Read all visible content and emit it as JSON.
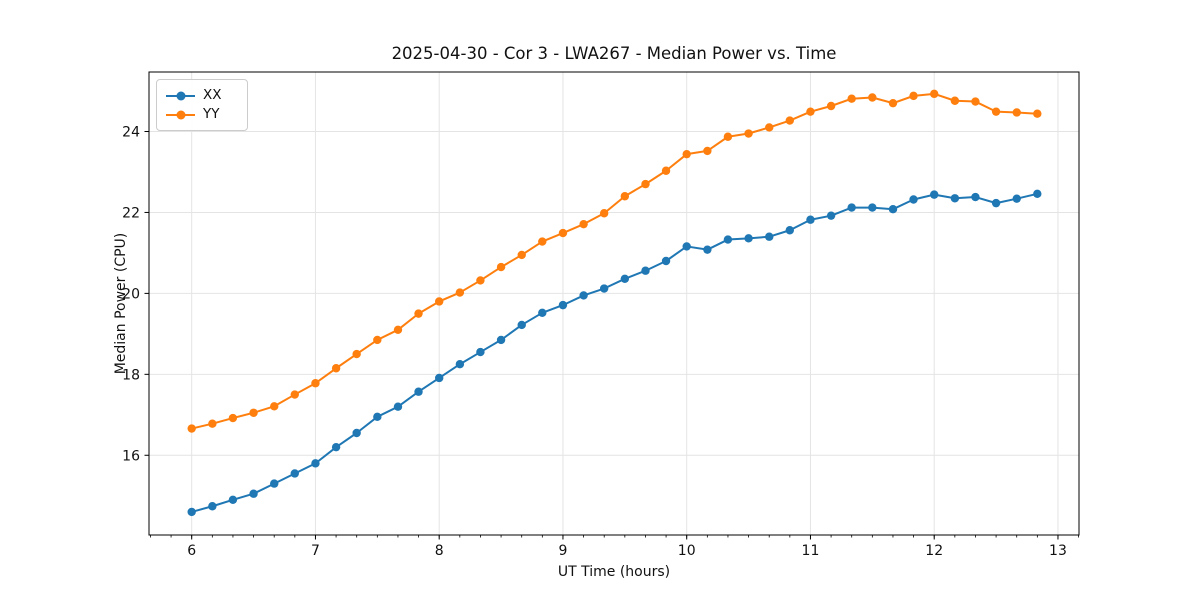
{
  "chart_data": {
    "type": "line",
    "title": "2025-04-30 - Cor 3 - LWA267 - Median Power vs. Time",
    "xlabel": "UT Time (hours)",
    "ylabel": "Median Power (CPU)",
    "x": [
      6.0,
      6.167,
      6.333,
      6.5,
      6.667,
      6.833,
      7.0,
      7.167,
      7.333,
      7.5,
      7.667,
      7.833,
      8.0,
      8.167,
      8.333,
      8.5,
      8.667,
      8.833,
      9.0,
      9.167,
      9.333,
      9.5,
      9.667,
      9.833,
      10.0,
      10.167,
      10.333,
      10.5,
      10.667,
      10.833,
      11.0,
      11.167,
      11.333,
      11.5,
      11.667,
      11.833,
      12.0,
      12.167,
      12.333,
      12.5,
      12.667,
      12.833
    ],
    "series": [
      {
        "name": "XX",
        "color": "#1f77b4",
        "values": [
          14.6,
          14.74,
          14.9,
          15.05,
          15.3,
          15.55,
          15.8,
          16.2,
          16.55,
          16.95,
          17.2,
          17.57,
          17.91,
          18.25,
          18.55,
          18.85,
          19.22,
          19.52,
          19.71,
          19.95,
          20.12,
          20.36,
          20.56,
          20.8,
          21.16,
          21.08,
          21.33,
          21.36,
          21.4,
          21.56,
          21.82,
          21.92,
          22.12,
          22.12,
          22.08,
          22.32,
          22.44,
          22.35,
          22.38,
          22.23,
          22.34,
          22.46
        ]
      },
      {
        "name": "YY",
        "color": "#ff7f0e",
        "values": [
          16.66,
          16.78,
          16.92,
          17.05,
          17.21,
          17.5,
          17.78,
          18.15,
          18.5,
          18.85,
          19.1,
          19.5,
          19.8,
          20.02,
          20.32,
          20.65,
          20.95,
          21.28,
          21.49,
          21.71,
          21.98,
          22.4,
          22.7,
          23.03,
          23.44,
          23.52,
          23.87,
          23.95,
          24.1,
          24.27,
          24.49,
          24.63,
          24.81,
          24.84,
          24.7,
          24.88,
          24.93,
          24.76,
          24.74,
          24.49,
          24.47,
          24.44
        ]
      }
    ],
    "xlim": [
      5.655,
      13.17
    ],
    "ylim": [
      14.03,
      25.47
    ],
    "xticks": [
      6,
      7,
      8,
      9,
      10,
      11,
      12,
      13
    ],
    "yticks": [
      16,
      18,
      20,
      22,
      24
    ],
    "x_minor_step": 0.166667,
    "grid": true,
    "legend_position": "upper left",
    "grid_color": "#e4e4e4",
    "axis_color": "#000000",
    "marker": "circle",
    "marker_radius": 4.2,
    "line_width": 2
  }
}
